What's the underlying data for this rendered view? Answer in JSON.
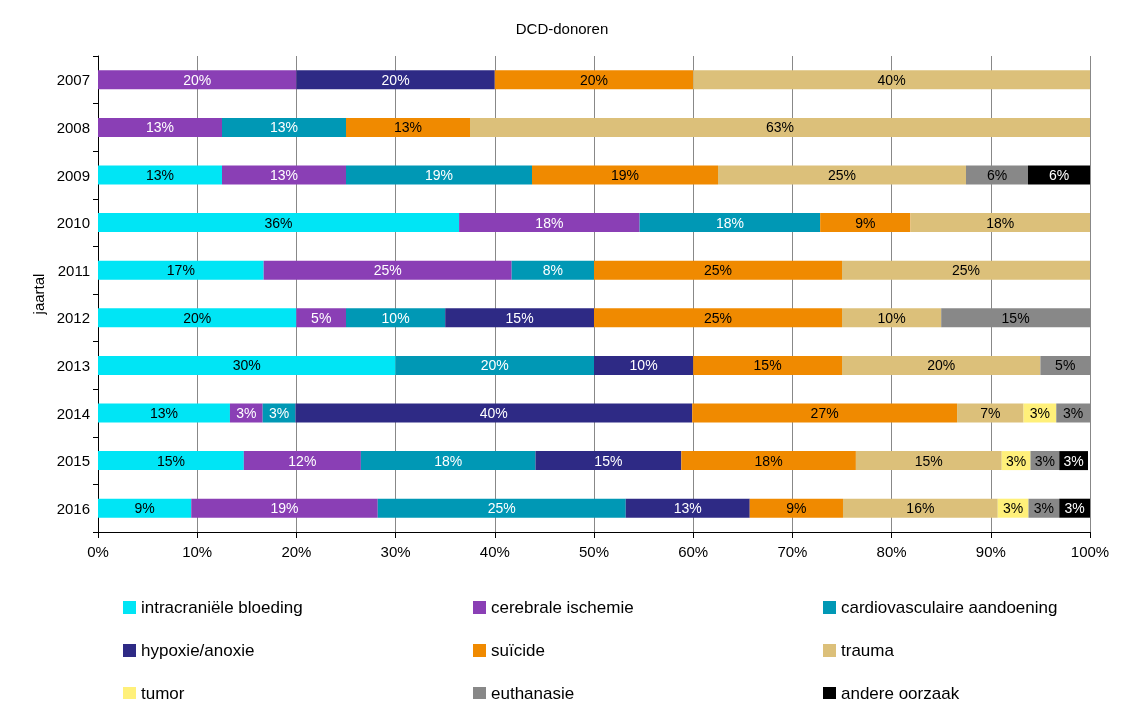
{
  "chart_data": {
    "type": "bar",
    "title": "DCD-donoren",
    "ylabel": "jaartal",
    "orientation": "horizontal",
    "stacked": true,
    "categories": [
      "2007",
      "2008",
      "2009",
      "2010",
      "2011",
      "2012",
      "2013",
      "2014",
      "2015",
      "2016"
    ],
    "xlim": [
      0,
      100
    ],
    "xticks": [
      {
        "value": 0,
        "label": "0%"
      },
      {
        "value": 10,
        "label": "10%"
      },
      {
        "value": 20,
        "label": "20%"
      },
      {
        "value": 30,
        "label": "30%"
      },
      {
        "value": 40,
        "label": "40%"
      },
      {
        "value": 50,
        "label": "50%"
      },
      {
        "value": 60,
        "label": "60%"
      },
      {
        "value": 70,
        "label": "70%"
      },
      {
        "value": 80,
        "label": "80%"
      },
      {
        "value": 90,
        "label": "90%"
      },
      {
        "value": 100,
        "label": "100%"
      }
    ],
    "grid": "x",
    "legend": "bottom",
    "series": [
      {
        "name": "intracraniële bloeding",
        "color": "#00e5f5",
        "values": [
          null,
          null,
          12.5,
          36.4,
          16.7,
          20,
          30,
          13.3,
          14.7,
          9.4
        ],
        "value_labels": [
          null,
          null,
          "13%",
          "36%",
          "17%",
          "20%",
          "30%",
          "13%",
          "15%",
          "9%"
        ]
      },
      {
        "name": "cerebrale ischemie",
        "color": "#8a3fb5",
        "values": [
          20,
          12.5,
          12.5,
          18.2,
          25,
          5,
          null,
          3.3,
          11.8,
          18.8
        ],
        "value_labels": [
          "20%",
          "13%",
          "13%",
          "18%",
          "25%",
          "5%",
          null,
          "3%",
          "12%",
          "19%"
        ]
      },
      {
        "name": "cardiovasculaire aandoening",
        "color": "#0098b5",
        "values": [
          null,
          12.5,
          18.75,
          18.2,
          8.3,
          10,
          20,
          3.3,
          17.6,
          25
        ],
        "value_labels": [
          null,
          "13%",
          "19%",
          "18%",
          "8%",
          "10%",
          "20%",
          "3%",
          "18%",
          "25%"
        ]
      },
      {
        "name": "hypoxie/anoxie",
        "color": "#2e2a85",
        "values": [
          20,
          null,
          null,
          null,
          null,
          15,
          10,
          40,
          14.7,
          12.5
        ],
        "value_labels": [
          "20%",
          null,
          null,
          null,
          null,
          "15%",
          "10%",
          "40%",
          "15%",
          "13%"
        ]
      },
      {
        "name": "suïcide",
        "color": "#f08a00",
        "values": [
          20,
          12.5,
          18.75,
          9.1,
          25,
          25,
          15,
          26.7,
          17.6,
          9.4
        ],
        "value_labels": [
          "20%",
          "13%",
          "19%",
          "9%",
          "25%",
          "25%",
          "15%",
          "27%",
          "18%",
          "9%"
        ]
      },
      {
        "name": "trauma",
        "color": "#dcc07a",
        "values": [
          40,
          62.5,
          25,
          18.1,
          25,
          10,
          20,
          6.7,
          14.7,
          15.6
        ],
        "value_labels": [
          "40%",
          "63%",
          "25%",
          "18%",
          "25%",
          "10%",
          "20%",
          "7%",
          "15%",
          "16%"
        ]
      },
      {
        "name": "tumor",
        "color": "#fff07a",
        "values": [
          null,
          null,
          null,
          null,
          null,
          null,
          null,
          3.3,
          2.9,
          3.1
        ],
        "value_labels": [
          null,
          null,
          null,
          null,
          null,
          null,
          null,
          "3%",
          "3%",
          "3%"
        ]
      },
      {
        "name": "euthanasie",
        "color": "#888888",
        "values": [
          null,
          null,
          6.25,
          null,
          null,
          15,
          5,
          3.4,
          2.9,
          3.1
        ],
        "value_labels": [
          null,
          null,
          "6%",
          null,
          null,
          "15%",
          "5%",
          "3%",
          "3%",
          "3%"
        ]
      },
      {
        "name": "andere oorzaak",
        "color": "#000000",
        "values": [
          null,
          null,
          6.25,
          null,
          null,
          null,
          null,
          null,
          2.9,
          3.1
        ],
        "value_labels": [
          null,
          null,
          "6%",
          null,
          null,
          null,
          null,
          null,
          "3%",
          "3%"
        ]
      }
    ]
  }
}
